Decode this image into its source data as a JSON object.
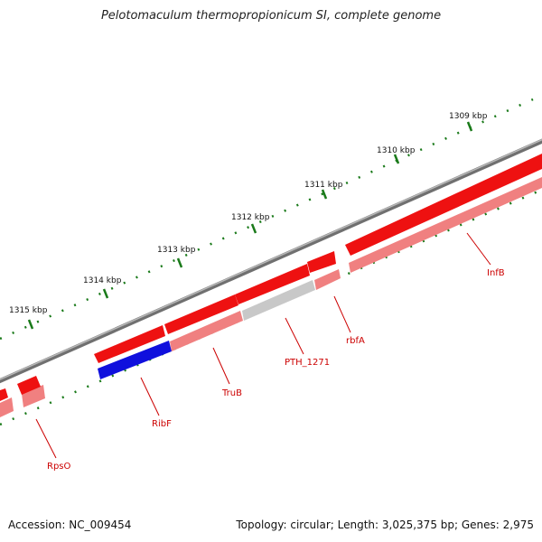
{
  "title": "Pelotomaculum thermopropionicum SI, complete genome",
  "accession_text": "Accession: NC_009454",
  "topology_text": "Topology: circular; Length: 3,025,375 bp; Genes: 2,975",
  "colors": {
    "backbone": "#808080",
    "tick": "#1a7a1a",
    "gene_forward": "#ee1111",
    "gene_rna": "#1010dd",
    "gene_shadow": "#f08080",
    "gene_shadow_grey": "#c8c8c8",
    "label": "#cc0000"
  },
  "ticks": [
    {
      "label": "1309 kbp"
    },
    {
      "label": "1310 kbp"
    },
    {
      "label": "1311 kbp"
    },
    {
      "label": "1312 kbp"
    },
    {
      "label": "1313 kbp"
    },
    {
      "label": "1314 kbp"
    },
    {
      "label": "1315 kbp"
    }
  ],
  "genes": [
    {
      "label": "InfB"
    },
    {
      "label": "rbfA"
    },
    {
      "label": "PTH_1271"
    },
    {
      "label": "TruB"
    },
    {
      "label": "RibF"
    },
    {
      "label": "RpsO"
    }
  ]
}
